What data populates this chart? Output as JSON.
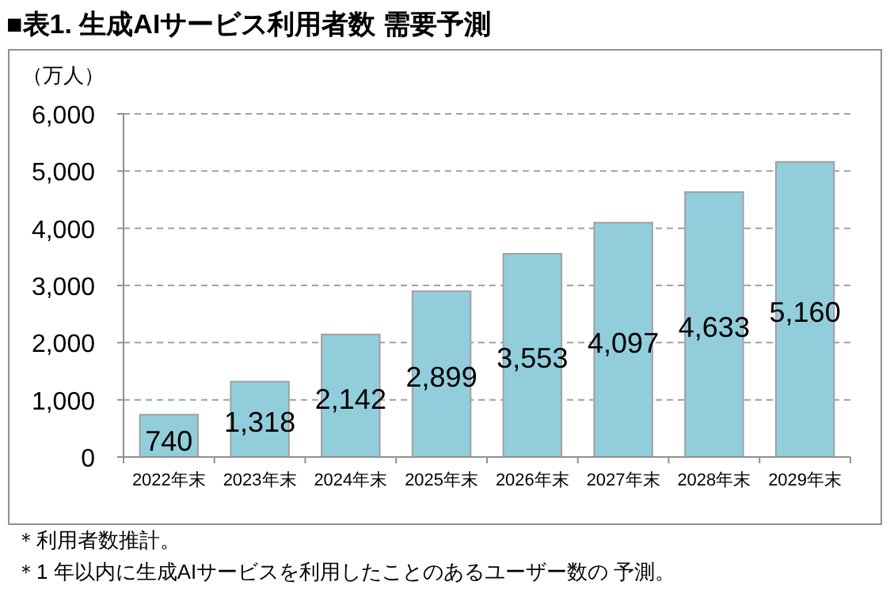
{
  "chart_data": {
    "type": "bar",
    "title": "■表1. 生成AIサービス利用者数 需要予測",
    "ylabel": "（万人）",
    "categories": [
      "2022年末",
      "2023年末",
      "2024年末",
      "2025年末",
      "2026年末",
      "2027年末",
      "2028年末",
      "2029年末"
    ],
    "values": [
      740,
      1318,
      2142,
      2899,
      3553,
      4097,
      4633,
      5160
    ],
    "color": "#92cddc",
    "ylim": [
      0,
      6000
    ],
    "yticks": [
      {
        "value": 0,
        "label": "0"
      },
      {
        "value": 1000,
        "label": "1,000"
      },
      {
        "value": 2000,
        "label": "2,000"
      },
      {
        "value": 3000,
        "label": "3,000"
      },
      {
        "value": 4000,
        "label": "4,000"
      },
      {
        "value": 5000,
        "label": "5,000"
      },
      {
        "value": 6000,
        "label": "6,000"
      }
    ],
    "grid": "y",
    "value_labels": [
      "740",
      "1,318",
      "2,142",
      "2,899",
      "3,553",
      "4,097",
      "4,633",
      "5,160"
    ],
    "annotations": [
      "＊利用者数推計。",
      "＊1 年以内に生成AIサービスを利用したことのあるユーザー数の 予測。"
    ]
  }
}
